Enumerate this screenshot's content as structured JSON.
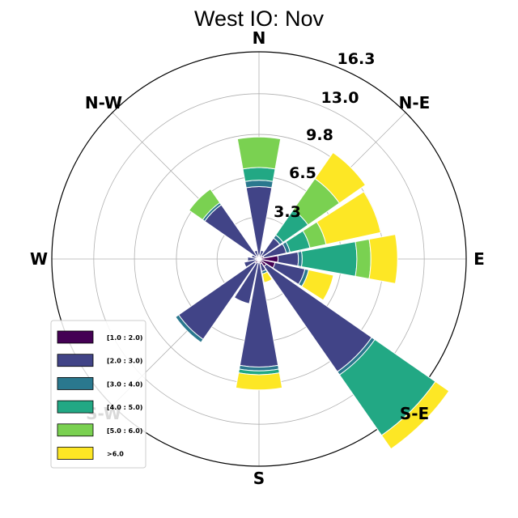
{
  "chart_data": {
    "type": "windrose",
    "title": "West IO: Nov",
    "direction_labels": [
      {
        "label": "N",
        "angle": 0
      },
      {
        "label": "N-E",
        "angle": 45
      },
      {
        "label": "E",
        "angle": 90
      },
      {
        "label": "S-E",
        "angle": 135
      },
      {
        "label": "S",
        "angle": 180
      },
      {
        "label": "S-W",
        "angle": 225
      },
      {
        "label": "W",
        "angle": 270
      },
      {
        "label": "N-W",
        "angle": 315
      }
    ],
    "radial_ticks": [
      3.3,
      6.5,
      9.8,
      13.0,
      16.3
    ],
    "radial_max": 16.3,
    "bins": [
      "[1.0 : 2.0)",
      "[2.0 : 3.0)",
      "[3.0 : 4.0)",
      "[4.0 : 5.0)",
      "[5.0 : 6.0)",
      ">6.0"
    ],
    "colors": [
      "#440154",
      "#414487",
      "#2a788e",
      "#22a884",
      "#7ad151",
      "#fde725"
    ],
    "legend_position": "lower-left",
    "sectors": [
      {
        "direction": 0,
        "values": [
          0.3,
          5.4,
          0.5,
          1.0,
          2.4,
          0
        ]
      },
      {
        "direction": 22.5,
        "values": [
          0.2,
          0.5,
          0,
          0,
          0,
          0
        ]
      },
      {
        "direction": 45,
        "values": [
          0.3,
          1.7,
          0.3,
          2.4,
          3.0,
          2.5
        ]
      },
      {
        "direction": 67.5,
        "values": [
          0.4,
          1.8,
          0.3,
          1.6,
          1.3,
          4.4
        ]
      },
      {
        "direction": 90,
        "values": [
          1.5,
          1.6,
          0.3,
          4.3,
          1.1,
          2.1
        ]
      },
      {
        "direction": 112.5,
        "values": [
          1.3,
          2.4,
          0.3,
          0,
          0,
          2.0
        ]
      },
      {
        "direction": 135,
        "values": [
          0.7,
          10.1,
          0.3,
          5.8,
          0,
          1.3
        ]
      },
      {
        "direction": 157.5,
        "values": [
          0.4,
          0.6,
          0.2,
          0,
          0,
          0.7
        ]
      },
      {
        "direction": 180,
        "values": [
          0.3,
          8.2,
          0.3,
          0.3,
          0,
          1.2
        ]
      },
      {
        "direction": 202.5,
        "values": [
          0.3,
          3.3,
          0,
          0,
          0,
          0
        ]
      },
      {
        "direction": 225,
        "values": [
          0.4,
          7.3,
          0.3,
          0,
          0,
          0
        ]
      },
      {
        "direction": 247.5,
        "values": [
          0.2,
          1.0,
          0,
          0,
          0,
          0
        ]
      },
      {
        "direction": 270,
        "values": [
          0.3,
          0.6,
          0,
          0,
          0,
          0
        ]
      },
      {
        "direction": 292.5,
        "values": [
          0.2,
          0.4,
          0,
          0,
          0,
          0
        ]
      },
      {
        "direction": 315,
        "values": [
          0.3,
          4.9,
          0.2,
          0,
          1.3,
          0
        ]
      },
      {
        "direction": 337.5,
        "values": [
          0.2,
          0.5,
          0,
          0,
          0,
          0
        ]
      }
    ]
  }
}
